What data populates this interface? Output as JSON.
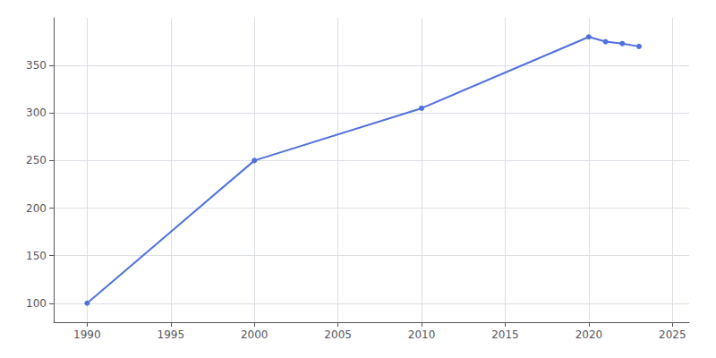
{
  "chart_data": {
    "type": "line",
    "x": [
      1990,
      2000,
      2010,
      2020,
      2021,
      2022,
      2023
    ],
    "values": [
      100,
      250,
      305,
      380,
      375,
      373,
      370
    ],
    "marker": "circle",
    "xlim": [
      1988,
      2026
    ],
    "xticks": [
      1990,
      1995,
      2000,
      2005,
      2010,
      2015,
      2020,
      2025
    ],
    "ylim": [
      80,
      400
    ],
    "yticks": [
      100,
      150,
      200,
      250,
      300,
      350
    ],
    "grid": true
  }
}
